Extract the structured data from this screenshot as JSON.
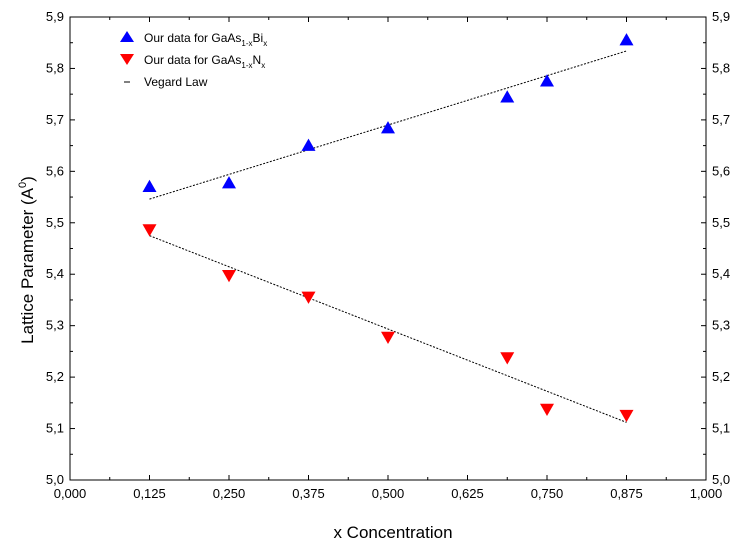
{
  "chart_data": {
    "type": "scatter",
    "xlabel": "x Concentration",
    "ylabel": "Lattice Parameter (A",
    "ylabel_sup": "0",
    "ylabel_close": ")",
    "xlim": [
      0.0,
      1.0
    ],
    "ylim": [
      5.0,
      5.9
    ],
    "x_ticks": [
      0.0,
      0.125,
      0.25,
      0.375,
      0.5,
      0.625,
      0.75,
      0.875,
      1.0
    ],
    "x_tick_labels": [
      "0,000",
      "0,125",
      "0,250",
      "0,375",
      "0,500",
      "0,625",
      "0,750",
      "0,875",
      "1,000"
    ],
    "y_ticks": [
      5.0,
      5.1,
      5.2,
      5.3,
      5.4,
      5.5,
      5.6,
      5.7,
      5.8,
      5.9
    ],
    "y_tick_labels": [
      "5,0",
      "5,1",
      "5,2",
      "5,3",
      "5,4",
      "5,5",
      "5,6",
      "5,7",
      "5,8",
      "5,9"
    ],
    "legend_position": "top-left",
    "series": [
      {
        "name_parts": [
          "Our data for GaAs",
          "1-x",
          "Bi",
          "x"
        ],
        "marker": "triangle-up",
        "color": "#0000ff",
        "x": [
          0.125,
          0.25,
          0.375,
          0.5,
          0.6875,
          0.75,
          0.875
        ],
        "y": [
          5.57,
          5.577,
          5.65,
          5.684,
          5.744,
          5.775,
          5.855
        ]
      },
      {
        "name_parts": [
          "Our data for GaAs",
          "1-x",
          "N",
          "x"
        ],
        "marker": "triangle-down",
        "color": "#ff0000",
        "x": [
          0.125,
          0.25,
          0.375,
          0.5,
          0.6875,
          0.75,
          0.875
        ],
        "y": [
          5.487,
          5.398,
          5.356,
          5.278,
          5.238,
          5.138,
          5.126
        ]
      },
      {
        "name": "Vegard Law",
        "type": "line",
        "style": "dashed",
        "color": "#000000",
        "lines": [
          {
            "x": [
              0.125,
              0.875
            ],
            "y": [
              5.546,
              5.834
            ]
          },
          {
            "x": [
              0.125,
              0.875
            ],
            "y": [
              5.475,
              5.112
            ]
          }
        ]
      }
    ]
  }
}
